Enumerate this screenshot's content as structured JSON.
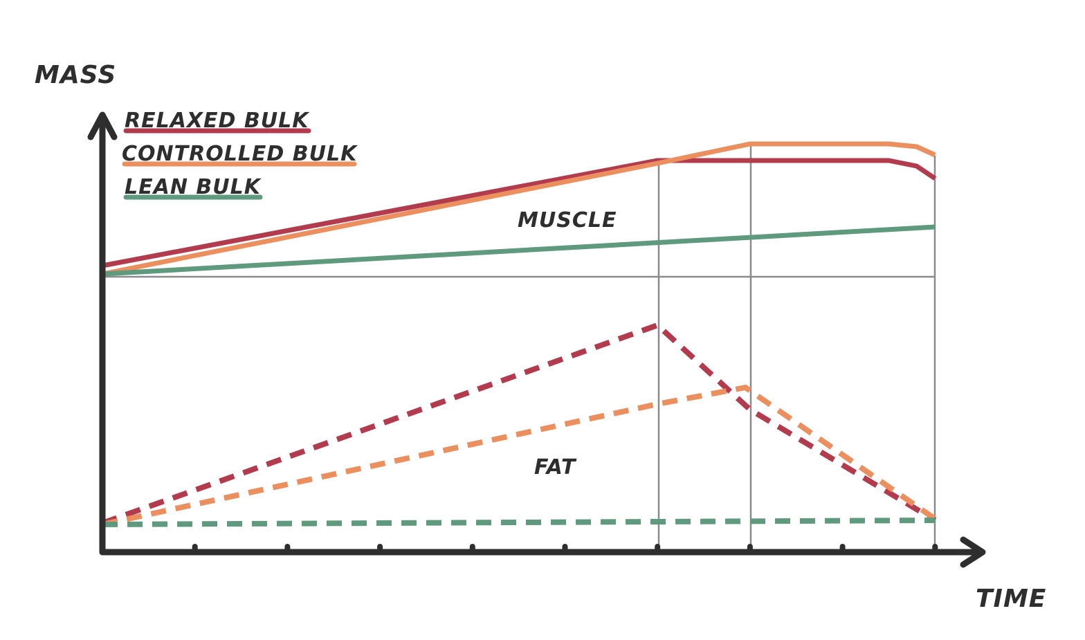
{
  "chart_data": {
    "type": "line",
    "title": "",
    "xlabel": "TIME",
    "ylabel": "MASS",
    "xlim": [
      0,
      9.5
    ],
    "ylim": [
      0,
      16
    ],
    "grid": false,
    "tick_positions": [
      1,
      2,
      3,
      4,
      5,
      6,
      7,
      8,
      9
    ],
    "tick_labels": [],
    "vertical_reference_lines": [
      6,
      7,
      9
    ],
    "horizontal_divider": 10,
    "legend": {
      "position": "top-left",
      "entries": [
        {
          "label": "RELAXED BULK",
          "color": "#b33b4e"
        },
        {
          "label": "CONTROLLED BULK",
          "color": "#ec8f5f"
        },
        {
          "label": "LEAN BULK",
          "color": "#5f9a7f"
        }
      ]
    },
    "annotations": [
      {
        "text": "MUSCLE",
        "x": 5.0,
        "y": 12.1
      },
      {
        "text": "FAT",
        "x": 4.9,
        "y": 3.2
      }
    ],
    "series": [
      {
        "name": "Relaxed Bulk - Muscle",
        "group": "muscle",
        "style": "solid",
        "color": "#b33b4e",
        "x": [
          0,
          6,
          8.5,
          8.8,
          9
        ],
        "y": [
          10.4,
          14.2,
          14.2,
          14.0,
          13.55
        ]
      },
      {
        "name": "Controlled Bulk - Muscle",
        "group": "muscle",
        "style": "solid",
        "color": "#ec8f5f",
        "x": [
          0,
          6,
          7,
          8.5,
          8.8,
          9
        ],
        "y": [
          10.1,
          14.1,
          14.8,
          14.8,
          14.7,
          14.4
        ]
      },
      {
        "name": "Lean Bulk - Muscle",
        "group": "muscle",
        "style": "solid",
        "color": "#5f9a7f",
        "x": [
          0,
          9
        ],
        "y": [
          10.1,
          11.8
        ]
      },
      {
        "name": "Relaxed Bulk - Fat",
        "group": "fat",
        "style": "dashed",
        "color": "#b33b4e",
        "x": [
          0,
          6,
          7,
          9
        ],
        "y": [
          1.1,
          8.25,
          5.2,
          1.2
        ]
      },
      {
        "name": "Controlled Bulk - Fat",
        "group": "fat",
        "style": "dashed",
        "color": "#ec8f5f",
        "x": [
          0,
          6,
          6.95,
          9
        ],
        "y": [
          1.05,
          5.4,
          6.0,
          1.25
        ]
      },
      {
        "name": "Lean Bulk - Fat",
        "group": "fat",
        "style": "dashed",
        "color": "#5f9a7f",
        "x": [
          0,
          9
        ],
        "y": [
          1.05,
          1.2
        ]
      }
    ]
  },
  "labels": {
    "y_axis": "MASS",
    "x_axis": "TIME",
    "muscle": "MUSCLE",
    "fat": "FAT",
    "legend_relaxed": "RELAXED BULK",
    "legend_controlled": "CONTROLLED BULK",
    "legend_lean": "LEAN BULK"
  },
  "colors": {
    "relaxed": "#b33b4e",
    "controlled": "#ec8f5f",
    "lean": "#5f9a7f",
    "axis": "#2e2e2e",
    "gridline": "#8a8a8a"
  }
}
